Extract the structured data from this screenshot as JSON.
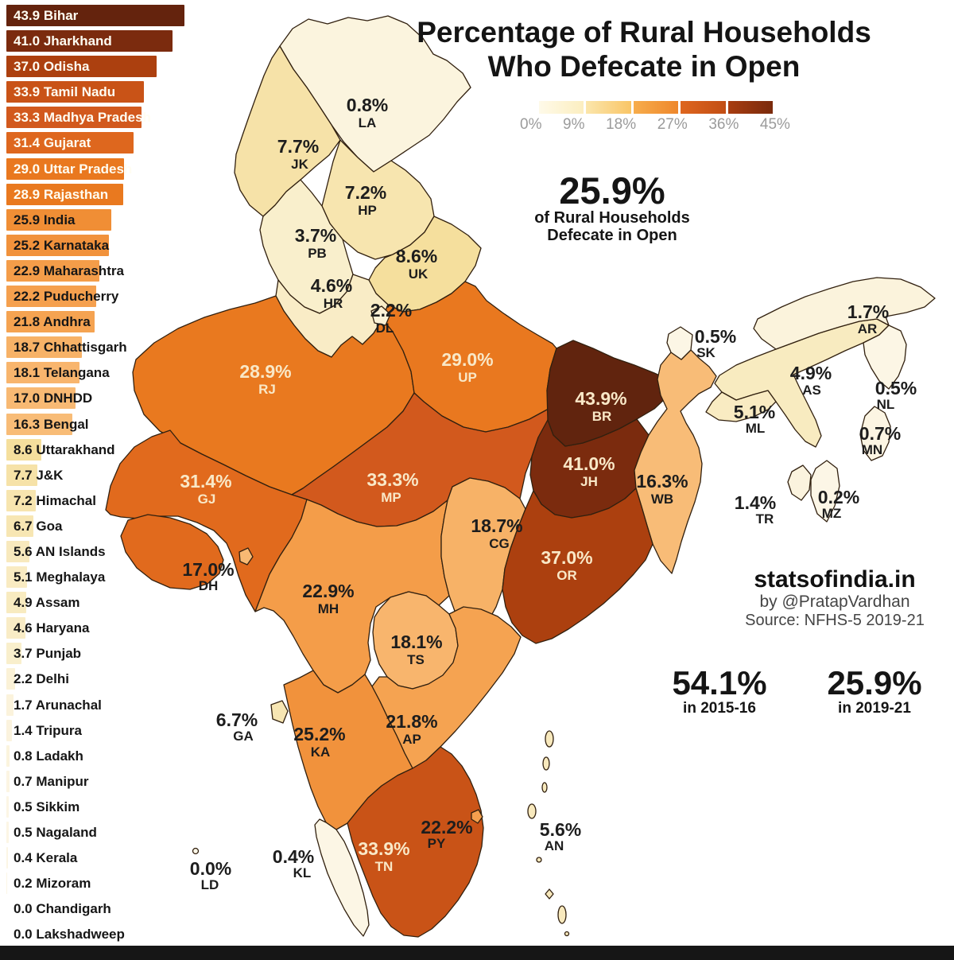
{
  "title": {
    "line1": "Percentage of Rural Households",
    "line2": "Who Defecate in Open"
  },
  "legend": {
    "ticks": [
      "0%",
      "9%",
      "18%",
      "27%",
      "36%",
      "45%"
    ],
    "segments": [
      "background:linear-gradient(90deg,#FEFAE9,#FCEEC0)",
      "background:linear-gradient(90deg,#FBE6AC,#F9C566)",
      "background:linear-gradient(90deg,#F7AD4C,#EE872C)",
      "background:linear-gradient(90deg,#DE661F,#C24E14)",
      "background:linear-gradient(90deg,#A83D11,#7A2A0C)"
    ]
  },
  "headline": {
    "value": "25.9%",
    "line1": "of Rural Households",
    "line2": "Defecate in Open"
  },
  "brand": {
    "site": "statsofindia.in",
    "byline": "by @PratapVardhan",
    "source": "Source: NFHS-5 2019-21"
  },
  "compare": [
    {
      "value": "54.1%",
      "label": "in 2015-16"
    },
    {
      "value": "25.9%",
      "label": "in 2019-21"
    }
  ],
  "footer": {
    "style": "background:#161616"
  },
  "ranking": {
    "items": [
      {
        "value": "43.9",
        "name": "Bihar",
        "color": "#64230D",
        "text": "#FFFDF2"
      },
      {
        "value": "41.0",
        "name": "Jharkhand",
        "color": "#7B2B0E",
        "text": "#FFFDF2"
      },
      {
        "value": "37.0",
        "name": "Odisha",
        "color": "#AC400F",
        "text": "#FFFDF2"
      },
      {
        "value": "33.9",
        "name": "Tamil Nadu",
        "color": "#C95317",
        "text": "#FFFDF2"
      },
      {
        "value": "33.3",
        "name": "Madhya Pradesh",
        "color": "#D2591D",
        "text": "#FFFDF2"
      },
      {
        "value": "31.4",
        "name": "Gujarat",
        "color": "#DE671E",
        "text": "#FFFDF2"
      },
      {
        "value": "29.0",
        "name": "Uttar Pradesh",
        "color": "#E9781F",
        "text": "#FFFDF2"
      },
      {
        "value": "28.9",
        "name": "Rajasthan",
        "color": "#E9791F",
        "text": "#FFFDF2"
      },
      {
        "value": "25.9",
        "name": "India",
        "color": "#F08E35",
        "text": "#161616"
      },
      {
        "value": "25.2",
        "name": "Karnataka",
        "color": "#F1923C",
        "text": "#161616"
      },
      {
        "value": "22.9",
        "name": "Maharashtra",
        "color": "#F49D49",
        "text": "#161616"
      },
      {
        "value": "22.2",
        "name": "Puducherry",
        "color": "#F5A04E",
        "text": "#161616"
      },
      {
        "value": "21.8",
        "name": "Andhra",
        "color": "#F5A351",
        "text": "#161616"
      },
      {
        "value": "18.7",
        "name": "Chhattisgarh",
        "color": "#F7B267",
        "text": "#161616"
      },
      {
        "value": "18.1",
        "name": "Telangana",
        "color": "#F8B56D",
        "text": "#161616"
      },
      {
        "value": "17.0",
        "name": "DNHDD",
        "color": "#F8B973",
        "text": "#161616"
      },
      {
        "value": "16.3",
        "name": "Bengal",
        "color": "#F8BC77",
        "text": "#161616"
      },
      {
        "value": "8.6",
        "name": "Uttarakhand",
        "color": "#F5DF9D",
        "text": "#161616"
      },
      {
        "value": "7.7",
        "name": "J&K",
        "color": "#F6E2A8",
        "text": "#161616"
      },
      {
        "value": "7.2",
        "name": "Himachal",
        "color": "#F7E5AF",
        "text": "#161616"
      },
      {
        "value": "6.7",
        "name": "Goa",
        "color": "#F7E6B3",
        "text": "#161616"
      },
      {
        "value": "5.6",
        "name": "AN Islands",
        "color": "#F8E9BD",
        "text": "#161616"
      },
      {
        "value": "5.1",
        "name": "Meghalaya",
        "color": "#F9EBC2",
        "text": "#161616"
      },
      {
        "value": "4.9",
        "name": "Assam",
        "color": "#F8EBC0",
        "text": "#161616"
      },
      {
        "value": "4.6",
        "name": "Haryana",
        "color": "#F9ECC6",
        "text": "#161616"
      },
      {
        "value": "3.7",
        "name": "Punjab",
        "color": "#F9EFCC",
        "text": "#161616"
      },
      {
        "value": "2.2",
        "name": "Delhi",
        "color": "#FBF2D7",
        "text": "#161616"
      },
      {
        "value": "1.7",
        "name": "Arunachal",
        "color": "#FBF3DC",
        "text": "#161616"
      },
      {
        "value": "1.4",
        "name": "Tripura",
        "color": "#FBF3DE",
        "text": "#161616"
      },
      {
        "value": "0.8",
        "name": "Ladakh",
        "color": "#FBF4DE",
        "text": "#161616"
      },
      {
        "value": "0.7",
        "name": "Manipur",
        "color": "#FCF5E3",
        "text": "#161616"
      },
      {
        "value": "0.5",
        "name": "Sikkim",
        "color": "#FCF6E5",
        "text": "#161616"
      },
      {
        "value": "0.5",
        "name": "Nagaland",
        "color": "#FCF6E5",
        "text": "#161616"
      },
      {
        "value": "0.4",
        "name": "Kerala",
        "color": "#FCF6E5",
        "text": "#161616"
      },
      {
        "value": "0.2",
        "name": "Mizoram",
        "color": "#FCF6E6",
        "text": "#161616"
      },
      {
        "value": "0.0",
        "name": "Chandigarh",
        "color": "#FDF7E8",
        "text": "#161616"
      },
      {
        "value": "0.0",
        "name": "Lakshadweep",
        "color": "#FDF7E8",
        "text": "#161616"
      }
    ]
  },
  "map": {
    "stroke": "#31200F",
    "states": [
      {
        "code": "LA",
        "value": "0.8%",
        "fill": "#FBF4DE",
        "label_fill": "#1D1D1D"
      },
      {
        "code": "JK",
        "value": "7.7%",
        "fill": "#F6E2A8",
        "label_fill": "#1D1D1D"
      },
      {
        "code": "HP",
        "value": "7.2%",
        "fill": "#F7E5AF",
        "label_fill": "#1D1D1D"
      },
      {
        "code": "PB",
        "value": "3.7%",
        "fill": "#F9EFCC",
        "label_fill": "#1D1D1D"
      },
      {
        "code": "UK",
        "value": "8.6%",
        "fill": "#F5DF9D",
        "label_fill": "#1D1D1D"
      },
      {
        "code": "HR",
        "value": "4.6%",
        "fill": "#F9ECC6",
        "label_fill": "#1D1D1D"
      },
      {
        "code": "DL",
        "value": "2.2%",
        "fill": "#FBF2D7",
        "label_fill": "#1D1D1D"
      },
      {
        "code": "RJ",
        "value": "28.9%",
        "fill": "#E9791F",
        "label_fill": "#F9E8C7"
      },
      {
        "code": "UP",
        "value": "29.0%",
        "fill": "#E9781F",
        "label_fill": "#F9E8C7"
      },
      {
        "code": "BR",
        "value": "43.9%",
        "fill": "#61240E",
        "label_fill": "#F9E8C7"
      },
      {
        "code": "SK",
        "value": "0.5%",
        "fill": "#FCF6E5",
        "label_fill": "#1D1D1D"
      },
      {
        "code": "WB",
        "value": "16.3%",
        "fill": "#F8BC77",
        "label_fill": "#1D1D1D"
      },
      {
        "code": "JH",
        "value": "41.0%",
        "fill": "#7B2B0E",
        "label_fill": "#F9E8C7"
      },
      {
        "code": "OR",
        "value": "37.0%",
        "fill": "#AC400F",
        "label_fill": "#F9E8C7"
      },
      {
        "code": "CG",
        "value": "18.7%",
        "fill": "#F7B267",
        "label_fill": "#1D1D1D"
      },
      {
        "code": "MP",
        "value": "33.3%",
        "fill": "#D2591D",
        "label_fill": "#F9E8C7"
      },
      {
        "code": "GJ",
        "value": "31.4%",
        "fill": "#E16A1D",
        "label_fill": "#F9E8C7"
      },
      {
        "code": "DH",
        "value": "17.0%",
        "fill": "#F8B973",
        "label_fill": "#1D1D1D"
      },
      {
        "code": "MH",
        "value": "22.9%",
        "fill": "#F49D49",
        "label_fill": "#1D1D1D"
      },
      {
        "code": "TS",
        "value": "18.1%",
        "fill": "#F8B56D",
        "label_fill": "#1D1D1D"
      },
      {
        "code": "AP",
        "value": "21.8%",
        "fill": "#F5A351",
        "label_fill": "#1D1D1D"
      },
      {
        "code": "KA",
        "value": "25.2%",
        "fill": "#F1923C",
        "label_fill": "#1D1D1D"
      },
      {
        "code": "GA",
        "value": "6.7%",
        "fill": "#F7E6B3",
        "label_fill": "#1D1D1D"
      },
      {
        "code": "KL",
        "value": "0.4%",
        "fill": "#FCF6E5",
        "label_fill": "#1D1D1D"
      },
      {
        "code": "TN",
        "value": "33.9%",
        "fill": "#C95317",
        "label_fill": "#F9E8C7"
      },
      {
        "code": "PY",
        "value": "22.2%",
        "fill": "#F5A04E",
        "label_fill": "#1D1D1D"
      },
      {
        "code": "LD",
        "value": "0.0%",
        "fill": "#FDF7E8",
        "label_fill": "#1D1D1D"
      },
      {
        "code": "AN",
        "value": "5.6%",
        "fill": "#F8E9BD",
        "label_fill": "#1D1D1D"
      },
      {
        "code": "AS",
        "value": "4.9%",
        "fill": "#F8EBC0",
        "label_fill": "#1D1D1D"
      },
      {
        "code": "AR",
        "value": "1.7%",
        "fill": "#FBF3DC",
        "label_fill": "#1D1D1D"
      },
      {
        "code": "NL",
        "value": "0.5%",
        "fill": "#FCF6E5",
        "label_fill": "#1D1D1D"
      },
      {
        "code": "ML",
        "value": "5.1%",
        "fill": "#F9EBC2",
        "label_fill": "#1D1D1D"
      },
      {
        "code": "MN",
        "value": "0.7%",
        "fill": "#FCF5E3",
        "label_fill": "#1D1D1D"
      },
      {
        "code": "MZ",
        "value": "0.2%",
        "fill": "#FCF6E6",
        "label_fill": "#1D1D1D"
      },
      {
        "code": "TR",
        "value": "1.4%",
        "fill": "#FBF3DE",
        "label_fill": "#1D1D1D"
      }
    ]
  },
  "chart_data": {
    "type": "choropleth",
    "title": "Percentage of Rural Households Who Defecate in Open",
    "unit": "% of rural households",
    "color_scale": {
      "min": 0,
      "max": 45,
      "ticks": [
        0,
        9,
        18,
        27,
        36,
        45
      ],
      "low_color": "#FEFAE9",
      "high_color": "#7A2A0C"
    },
    "national": {
      "value_2019_21": 25.9,
      "value_2015_16": 54.1
    },
    "source": "NFHS-5 2019-21",
    "states": [
      {
        "name": "Bihar",
        "code": "BR",
        "value": 43.9
      },
      {
        "name": "Jharkhand",
        "code": "JH",
        "value": 41.0
      },
      {
        "name": "Odisha",
        "code": "OR",
        "value": 37.0
      },
      {
        "name": "Tamil Nadu",
        "code": "TN",
        "value": 33.9
      },
      {
        "name": "Madhya Pradesh",
        "code": "MP",
        "value": 33.3
      },
      {
        "name": "Gujarat",
        "code": "GJ",
        "value": 31.4
      },
      {
        "name": "Uttar Pradesh",
        "code": "UP",
        "value": 29.0
      },
      {
        "name": "Rajasthan",
        "code": "RJ",
        "value": 28.9
      },
      {
        "name": "India",
        "code": "",
        "value": 25.9
      },
      {
        "name": "Karnataka",
        "code": "KA",
        "value": 25.2
      },
      {
        "name": "Maharashtra",
        "code": "MH",
        "value": 22.9
      },
      {
        "name": "Puducherry",
        "code": "PY",
        "value": 22.2
      },
      {
        "name": "Andhra",
        "code": "AP",
        "value": 21.8
      },
      {
        "name": "Chhattisgarh",
        "code": "CG",
        "value": 18.7
      },
      {
        "name": "Telangana",
        "code": "TS",
        "value": 18.1
      },
      {
        "name": "DNHDD",
        "code": "DH",
        "value": 17.0
      },
      {
        "name": "Bengal",
        "code": "WB",
        "value": 16.3
      },
      {
        "name": "Uttarakhand",
        "code": "UK",
        "value": 8.6
      },
      {
        "name": "J&K",
        "code": "JK",
        "value": 7.7
      },
      {
        "name": "Himachal",
        "code": "HP",
        "value": 7.2
      },
      {
        "name": "Goa",
        "code": "GA",
        "value": 6.7
      },
      {
        "name": "AN Islands",
        "code": "AN",
        "value": 5.6
      },
      {
        "name": "Meghalaya",
        "code": "ML",
        "value": 5.1
      },
      {
        "name": "Assam",
        "code": "AS",
        "value": 4.9
      },
      {
        "name": "Haryana",
        "code": "HR",
        "value": 4.6
      },
      {
        "name": "Punjab",
        "code": "PB",
        "value": 3.7
      },
      {
        "name": "Delhi",
        "code": "DL",
        "value": 2.2
      },
      {
        "name": "Arunachal",
        "code": "AR",
        "value": 1.7
      },
      {
        "name": "Tripura",
        "code": "TR",
        "value": 1.4
      },
      {
        "name": "Ladakh",
        "code": "LA",
        "value": 0.8
      },
      {
        "name": "Manipur",
        "code": "MN",
        "value": 0.7
      },
      {
        "name": "Sikkim",
        "code": "SK",
        "value": 0.5
      },
      {
        "name": "Nagaland",
        "code": "NL",
        "value": 0.5
      },
      {
        "name": "Kerala",
        "code": "KL",
        "value": 0.4
      },
      {
        "name": "Mizoram",
        "code": "MZ",
        "value": 0.2
      },
      {
        "name": "Chandigarh",
        "code": "",
        "value": 0.0
      },
      {
        "name": "Lakshadweep",
        "code": "LD",
        "value": 0.0
      }
    ]
  }
}
